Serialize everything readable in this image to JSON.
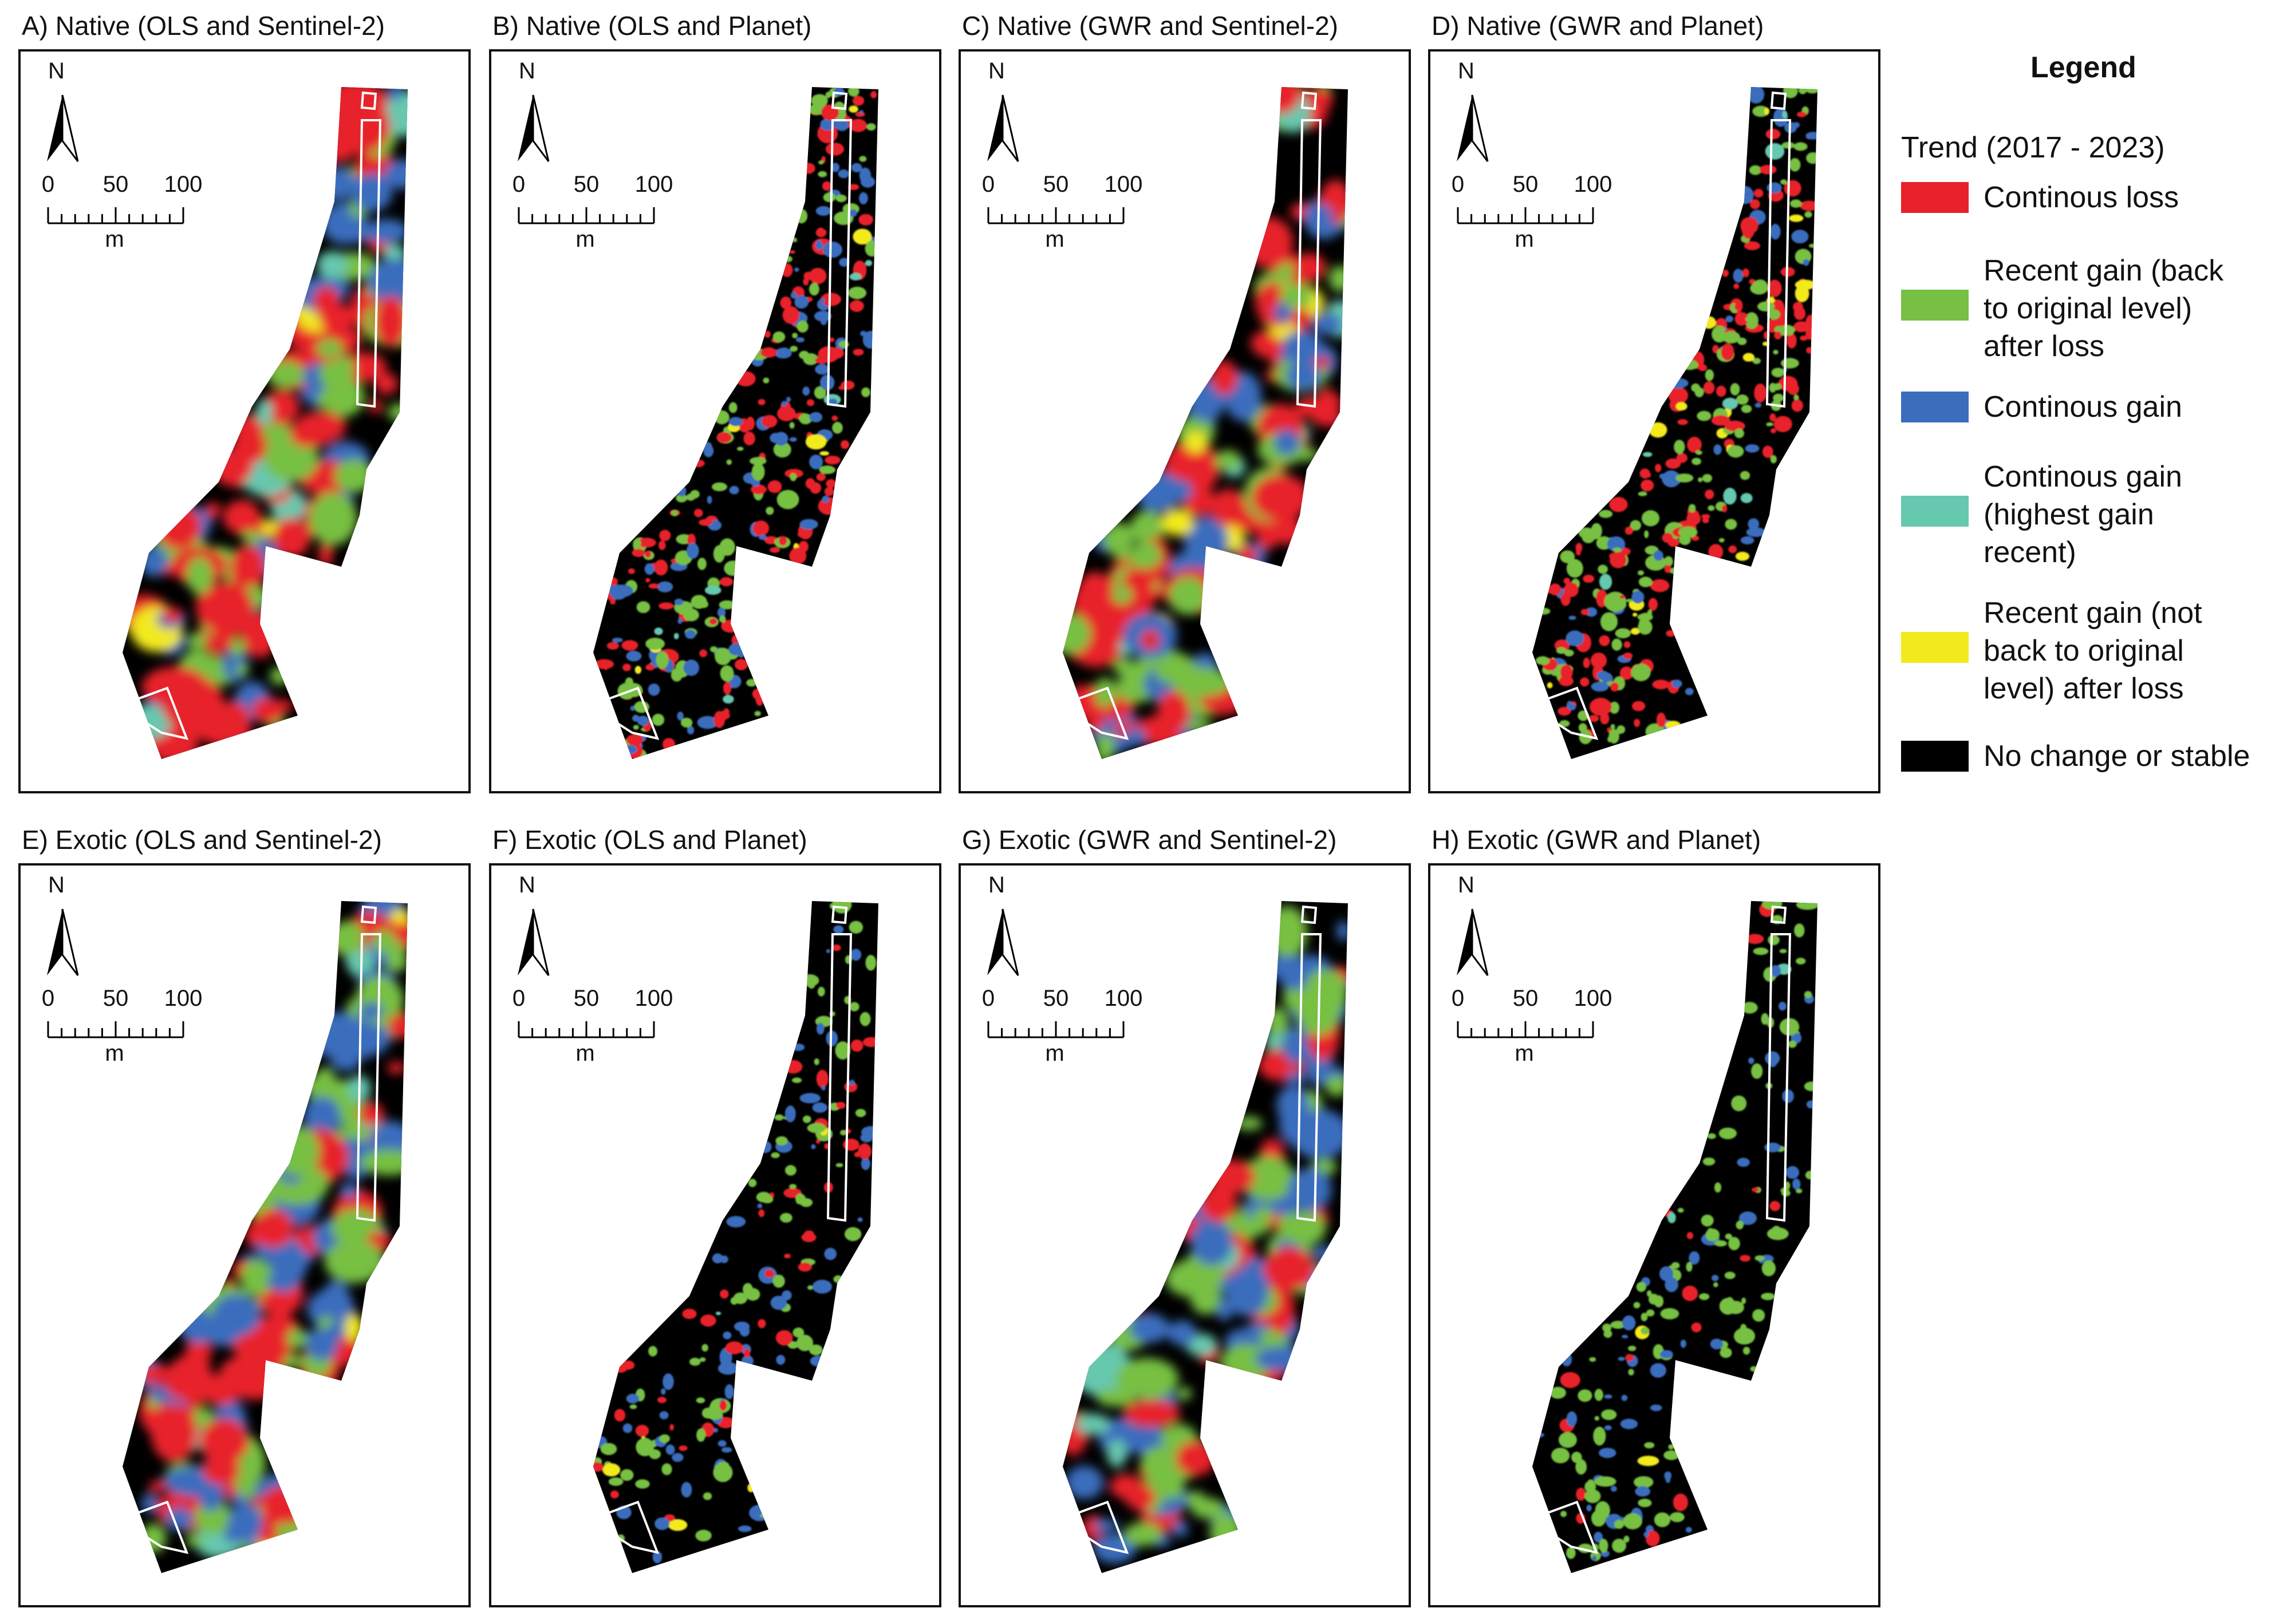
{
  "legend": {
    "title": "Legend",
    "subtitle": "Trend (2017 - 2023)",
    "items": [
      {
        "label": "Continous loss",
        "color": "#e8202a"
      },
      {
        "label": "Recent gain (back\nto original level)\nafter loss",
        "color": "#77c043"
      },
      {
        "label": "Continous gain",
        "color": "#3b6dbd"
      },
      {
        "label": "Continous gain\n(highest gain\nrecent)",
        "color": "#66c8ae"
      },
      {
        "label": "Recent gain (not\nback to original\nlevel) after loss",
        "color": "#f2ea1c"
      },
      {
        "label": "No change or stable",
        "color": "#000000"
      }
    ]
  },
  "north_label": "N",
  "scale": {
    "ticks": [
      "0",
      "50",
      "100"
    ],
    "unit": "m"
  },
  "panels": [
    {
      "title": "A) Native (OLS and Sentinel-2)",
      "seed": 11,
      "density": 1.0,
      "blur": 1,
      "mix": [
        0.42,
        0.26,
        0.24,
        0.06,
        0.02
      ]
    },
    {
      "title": "B) Native (OLS and Planet)",
      "seed": 23,
      "density": 1.0,
      "blur": 0,
      "mix": [
        0.4,
        0.28,
        0.28,
        0.02,
        0.02
      ]
    },
    {
      "title": "C) Native (GWR and Sentinel-2)",
      "seed": 37,
      "density": 0.9,
      "blur": 1,
      "mix": [
        0.44,
        0.24,
        0.22,
        0.06,
        0.04
      ]
    },
    {
      "title": "D) Native (GWR and Planet)",
      "seed": 41,
      "density": 1.0,
      "blur": 0,
      "mix": [
        0.42,
        0.38,
        0.14,
        0.03,
        0.03
      ]
    },
    {
      "title": "E) Exotic (OLS and Sentinel-2)",
      "seed": 53,
      "density": 1.0,
      "blur": 1,
      "mix": [
        0.3,
        0.3,
        0.32,
        0.06,
        0.02
      ]
    },
    {
      "title": "F) Exotic (OLS and Planet)",
      "seed": 67,
      "density": 0.55,
      "blur": 0,
      "mix": [
        0.26,
        0.4,
        0.28,
        0.02,
        0.04
      ]
    },
    {
      "title": "G) Exotic (GWR and Sentinel-2)",
      "seed": 71,
      "density": 0.9,
      "blur": 1,
      "mix": [
        0.28,
        0.32,
        0.32,
        0.06,
        0.02
      ]
    },
    {
      "title": "H) Exotic (GWR and Planet)",
      "seed": 83,
      "density": 0.55,
      "blur": 0,
      "mix": [
        0.1,
        0.6,
        0.28,
        0.01,
        0.01
      ]
    }
  ]
}
